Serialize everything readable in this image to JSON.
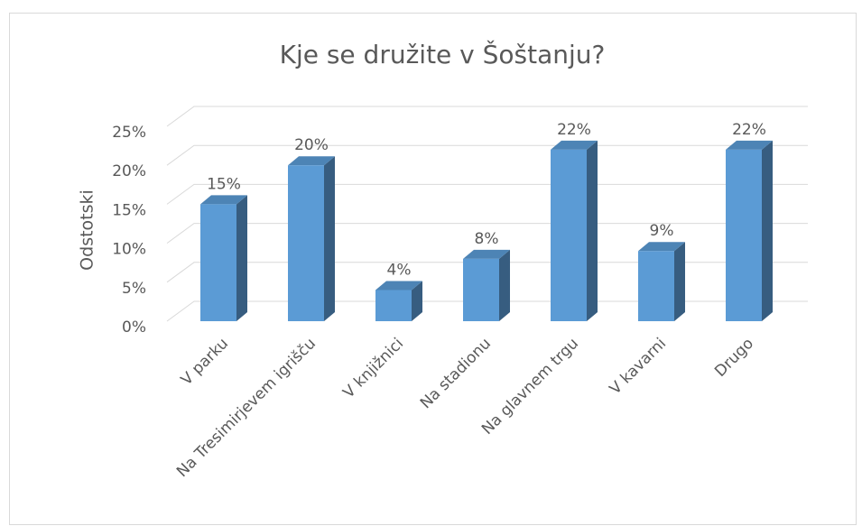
{
  "chart_data": {
    "type": "bar3d",
    "title": "Kje se družite v Šoštanju?",
    "y_label": "Odstotski",
    "categories": [
      "V parku",
      "Na Tresimirjevem igrišču",
      "V knjižnici",
      "Na stadionu",
      "Na glavnem trgu",
      "V kavarni",
      "Drugo"
    ],
    "values": [
      15,
      20,
      4,
      8,
      22,
      9,
      22
    ],
    "value_labels": [
      "15%",
      "20%",
      "4%",
      "8%",
      "22%",
      "9%",
      "22%"
    ],
    "color": "#5b9bd5",
    "ylim": [
      0,
      25
    ],
    "yticks": [
      {
        "value": 0,
        "label": "0%"
      },
      {
        "value": 5,
        "label": "5%"
      },
      {
        "value": 10,
        "label": "10%"
      },
      {
        "value": 15,
        "label": "15%"
      },
      {
        "value": 20,
        "label": "20%"
      },
      {
        "value": 25,
        "label": "25%"
      }
    ],
    "grid": true
  }
}
